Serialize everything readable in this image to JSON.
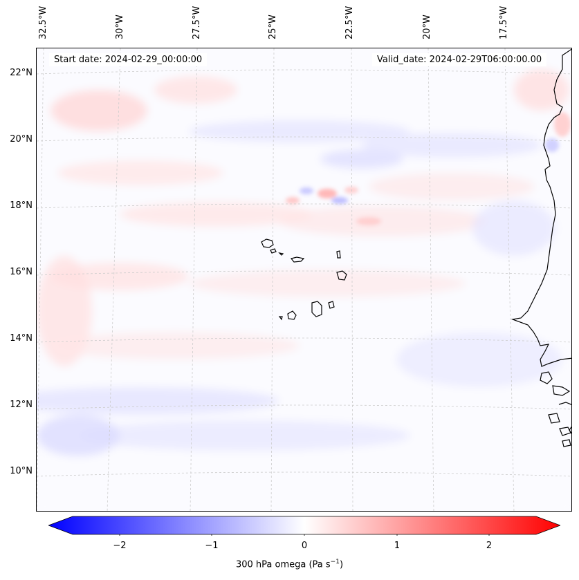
{
  "header": {
    "start_date": "Start date: 2024-02-29_00:00:00",
    "valid_date": "Valid_date: 2024-02-29T06:00:00.00"
  },
  "longitude_labels": [
    "32.5°W",
    "30°W",
    "27.5°W",
    "25°W",
    "22.5°W",
    "20°W",
    "17.5°W"
  ],
  "latitude_labels": [
    "22°N",
    "20°N",
    "18°N",
    "16°N",
    "14°N",
    "12°N",
    "10°N"
  ],
  "colorbar": {
    "label": "300 hPa omega (Pa s",
    "label_superscript": "−1",
    "label_suffix": ")",
    "ticks": [
      "−2",
      "−1",
      "0",
      "1",
      "2"
    ],
    "range": [
      -2.6,
      2.6
    ],
    "cmap": "bwr",
    "extend": "both",
    "colors": {
      "min": "#0000ff",
      "mid": "#ffffff",
      "max": "#ff0000"
    }
  },
  "map": {
    "projection": "Lambert conformal",
    "gridlines": true,
    "coastline_color": "#000000",
    "field": "300 hPa omega"
  }
}
